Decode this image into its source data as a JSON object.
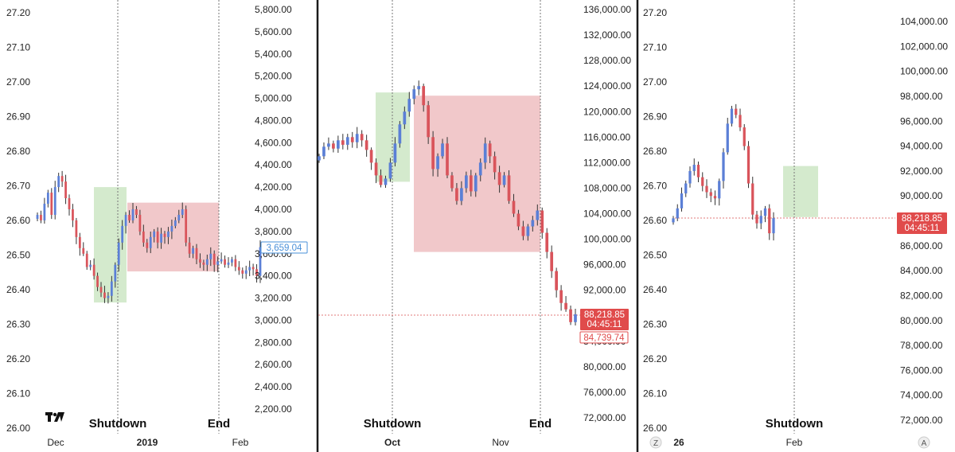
{
  "colors": {
    "up": "#5b7fd6",
    "down": "#d9545b",
    "green_zone": "#cfe8c8",
    "red_zone": "#f0c2c4",
    "price_tag_red": "#e04b4b",
    "blue_tag": "#4a90d9",
    "divider": "#1a1a1a",
    "grid_dotted": "#777777",
    "price_line": "#e07a7a"
  },
  "chart_data": [
    {
      "type": "candlestick",
      "left_axis": {
        "ticks": [
          "27.20",
          "27.10",
          "27.00",
          "26.90",
          "26.80",
          "26.70",
          "26.60",
          "26.50",
          "26.40",
          "26.30",
          "26.20",
          "26.10",
          "26.00"
        ],
        "ylim": [
          26.0,
          27.2
        ]
      },
      "right_axis": {
        "ticks": [
          "5,800.00",
          "5,600.00",
          "5,400.00",
          "5,200.00",
          "5,000.00",
          "4,800.00",
          "4,600.00",
          "4,400.00",
          "4,200.00",
          "4,000.00",
          "3,800.00",
          "3,600.00",
          "3,400.00",
          "3,200.00",
          "3,000.00",
          "2,800.00",
          "2,600.00",
          "2,400.00",
          "2,200.00"
        ],
        "ylim": [
          2200,
          5800
        ]
      },
      "x_ticks": [
        {
          "label": "Dec",
          "bold": false
        },
        {
          "label": "2019",
          "bold": true
        },
        {
          "label": "Feb",
          "bold": false
        }
      ],
      "annotations": [
        "Shutdown",
        "End"
      ],
      "last_price_tag": "3,659.04",
      "green_zone": {
        "price_from": 3160,
        "price_to": 4200
      },
      "red_zone": {
        "price_from": 3440,
        "price_to": 4060
      },
      "series": {
        "name": "",
        "close": [
          3950,
          3900,
          4050,
          4150,
          3950,
          4200,
          4300,
          4250,
          4100,
          4000,
          3900,
          3750,
          3650,
          3600,
          3480,
          3500,
          3400,
          3300,
          3250,
          3200,
          3220,
          3350,
          3500,
          3700,
          3850,
          3950,
          3900,
          4000,
          3950,
          3800,
          3700,
          3650,
          3750,
          3800,
          3700,
          3780,
          3750,
          3800,
          3850,
          3900,
          3950,
          4000,
          3700,
          3600,
          3650,
          3550,
          3520,
          3500,
          3550,
          3600,
          3500,
          3530,
          3550,
          3500,
          3520,
          3550,
          3480,
          3450,
          3420,
          3450,
          3480,
          3460,
          3400,
          3659
        ]
      }
    },
    {
      "type": "candlestick",
      "right_axis": {
        "ticks": [
          "136,000.00",
          "132,000.00",
          "128,000.00",
          "124,000.00",
          "120,000.00",
          "116,000.00",
          "112,000.00",
          "108,000.00",
          "104,000.00",
          "100,000.00",
          "96,000.00",
          "92,000.00",
          "88,000.00",
          "84,000.00",
          "80,000.00",
          "76,000.00",
          "72,000.00"
        ],
        "ylim": [
          72000,
          136000
        ]
      },
      "x_ticks": [
        {
          "label": "Oct",
          "bold": true
        },
        {
          "label": "Nov",
          "bold": false
        }
      ],
      "annotations": [
        "Shutdown",
        "End"
      ],
      "price_tag": {
        "price": "88,218.85",
        "countdown": "04:45:11"
      },
      "price_tag_2": "84,739.74",
      "green_zone": {
        "price_from": 109000,
        "price_to": 123000
      },
      "red_zone": {
        "price_from": 98000,
        "price_to": 122500
      },
      "series": {
        "name": "",
        "close": [
          113000,
          114500,
          115000,
          114200,
          115500,
          114800,
          116000,
          115200,
          116500,
          115500,
          114000,
          112000,
          110000,
          108500,
          109500,
          112000,
          115000,
          118000,
          120000,
          122000,
          123500,
          124000,
          121000,
          116000,
          111000,
          113000,
          115000,
          110000,
          108000,
          106000,
          108000,
          110000,
          107500,
          110000,
          112000,
          115000,
          113000,
          110500,
          108500,
          110000,
          106000,
          104000,
          102000,
          100500,
          102000,
          103000,
          104500,
          101000,
          98000,
          95000,
          92000,
          90000,
          89000,
          87000,
          88218
        ]
      }
    },
    {
      "type": "candlestick",
      "left_axis": {
        "ticks": [
          "27.20",
          "27.10",
          "27.00",
          "26.90",
          "26.80",
          "26.70",
          "26.60",
          "26.50",
          "26.40",
          "26.30",
          "26.20",
          "26.10",
          "26.00"
        ],
        "ylim": [
          26.0,
          27.2
        ]
      },
      "right_axis": {
        "ticks": [
          "104,000.00",
          "102,000.00",
          "100,000.00",
          "98,000.00",
          "96,000.00",
          "94,000.00",
          "92,000.00",
          "90,000.00",
          "88,000.00",
          "86,000.00",
          "84,000.00",
          "82,000.00",
          "80,000.00",
          "78,000.00",
          "76,000.00",
          "74,000.00",
          "72,000.00"
        ],
        "ylim": [
          72000,
          104000
        ]
      },
      "x_ticks": [
        {
          "label": "26",
          "bold": true
        },
        {
          "label": "Feb",
          "bold": false
        }
      ],
      "annotations": [
        "Shutdown"
      ],
      "price_tag": {
        "price": "88,218.85",
        "countdown": "04:45:11"
      },
      "green_zone": {
        "price_from": 88300,
        "price_to": 92400
      },
      "series": {
        "name": "",
        "close": [
          88200,
          89000,
          90200,
          91000,
          92000,
          92500,
          91500,
          90800,
          90300,
          90000,
          89800,
          91200,
          93500,
          95800,
          97000,
          96500,
          95500,
          94000,
          91000,
          88500,
          87800,
          88400,
          89000,
          87000,
          88218
        ]
      }
    }
  ],
  "footer": {
    "corner_left": "Z",
    "corner_right": "A"
  }
}
